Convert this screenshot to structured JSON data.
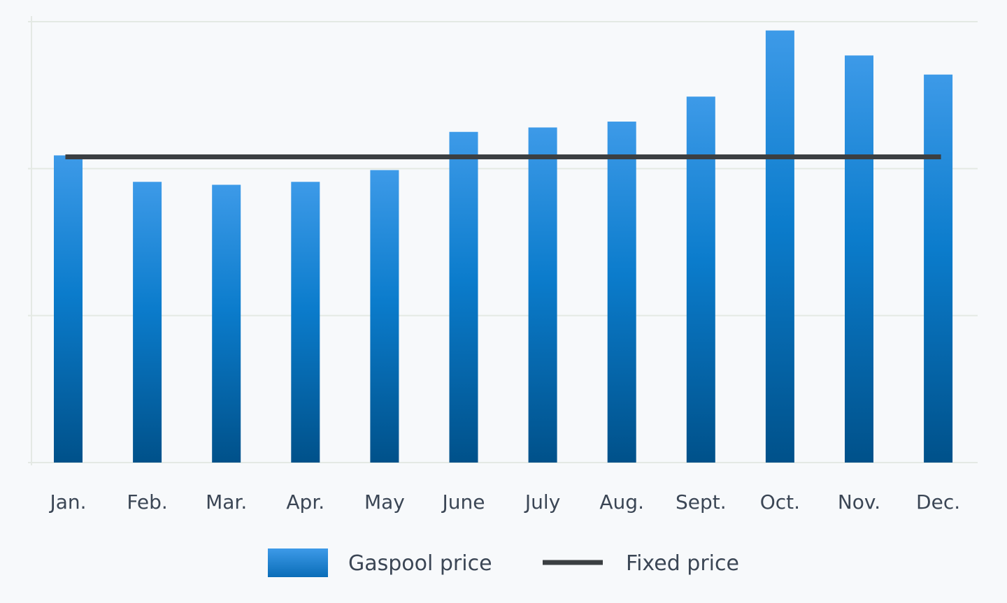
{
  "chart_data": {
    "type": "bar",
    "categories": [
      "Jan.",
      "Feb.",
      "Mar.",
      "Apr.",
      "May",
      "June",
      "July",
      "Aug.",
      "Sept.",
      "Oct.",
      "Nov.",
      "Dec."
    ],
    "series": [
      {
        "name": "Gaspool price",
        "type": "bar",
        "values": [
          20.9,
          19.1,
          18.9,
          19.1,
          19.9,
          22.5,
          22.8,
          23.2,
          24.9,
          29.4,
          27.7,
          26.4
        ]
      },
      {
        "name": "Fixed price",
        "type": "line",
        "values": [
          20.8,
          20.8,
          20.8,
          20.8,
          20.8,
          20.8,
          20.8,
          20.8,
          20.8,
          20.8,
          20.8,
          20.8
        ]
      }
    ],
    "ylim": [
      0,
      30
    ],
    "yticks": [
      0,
      10,
      20,
      30
    ],
    "grid": true,
    "legend_position": "bottom",
    "colors": {
      "bar_top": "#3d9ae8",
      "bar_bottom": "#00518a",
      "line": "#3b3f42",
      "grid": "#e4e9e4",
      "label": "#3b4655"
    }
  }
}
